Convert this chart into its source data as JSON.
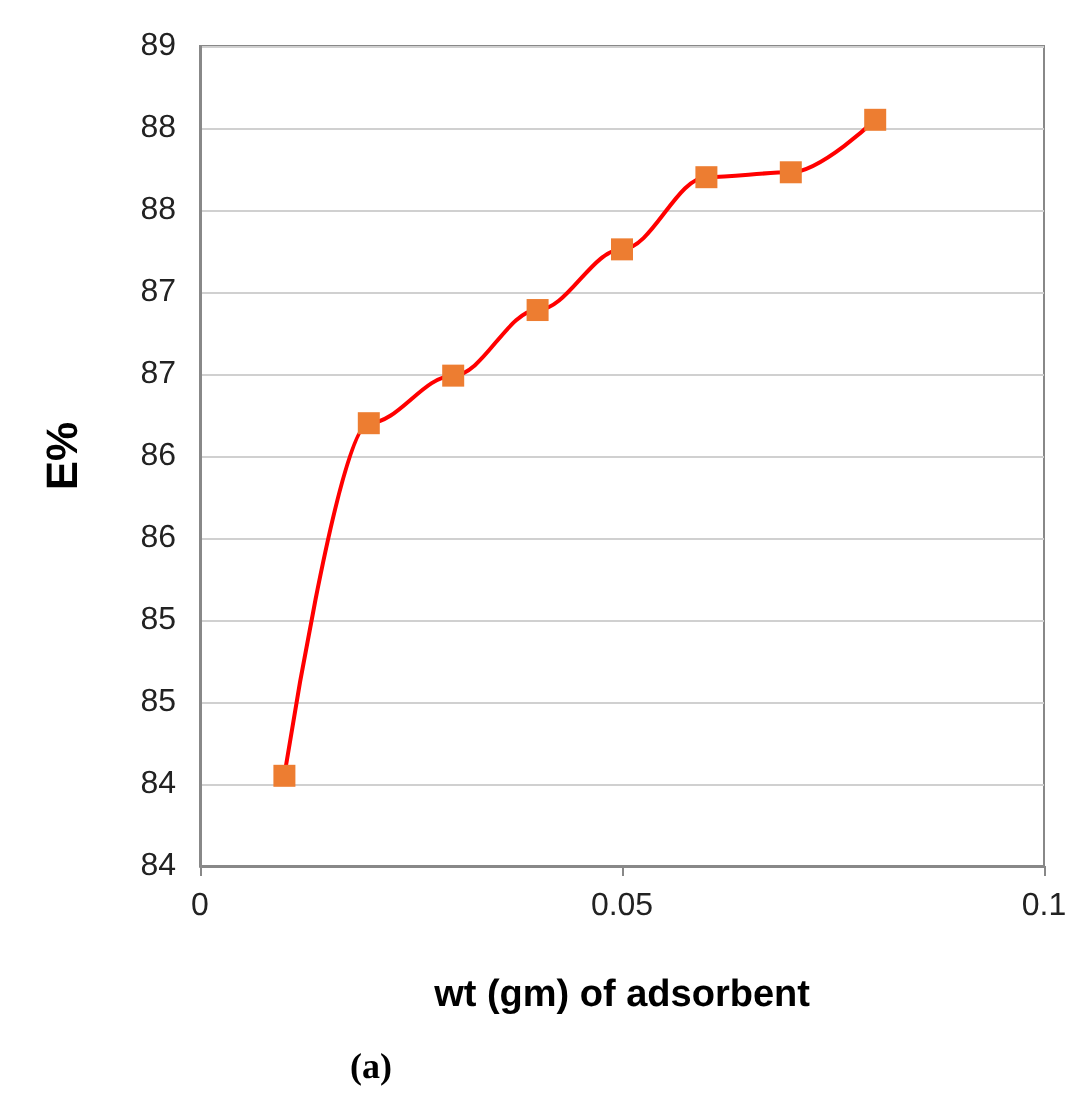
{
  "chart_data": {
    "type": "line",
    "xlabel": "wt (gm) of adsorbent",
    "ylabel": "E%",
    "annotations": [
      "(a)"
    ],
    "x": [
      0.01,
      0.02,
      0.03,
      0.04,
      0.05,
      0.06,
      0.07,
      0.08
    ],
    "series": [
      {
        "color": "#ff0000",
        "colors": [
          "#ed7d31",
          "#ed7d31",
          "#ed7d31",
          "#ed7d31",
          "#ed7d31",
          "#ed7d31",
          "#ed7d31",
          "#ed7d31"
        ],
        "values": [
          84.55,
          86.7,
          86.99,
          87.39,
          87.76,
          88.2,
          88.23,
          88.55
        ]
      }
    ],
    "xlim": [
      0,
      0.1
    ],
    "xticks": [
      0,
      0.05,
      0.1
    ],
    "ylim": [
      84,
      89
    ],
    "yticks": [
      {
        "value": 84,
        "label": "84"
      },
      {
        "value": 84.5,
        "label": "84"
      },
      {
        "value": 85,
        "label": "85"
      },
      {
        "value": 85.5,
        "label": "85"
      },
      {
        "value": 86,
        "label": "86"
      },
      {
        "value": 86.5,
        "label": "86"
      },
      {
        "value": 87,
        "label": "87"
      },
      {
        "value": 87.5,
        "label": "87"
      },
      {
        "value": 88,
        "label": "88"
      },
      {
        "value": 88.5,
        "label": "88"
      },
      {
        "value": 89,
        "label": "89"
      }
    ],
    "grid": "y",
    "marker": "square",
    "line_style": "solid"
  }
}
